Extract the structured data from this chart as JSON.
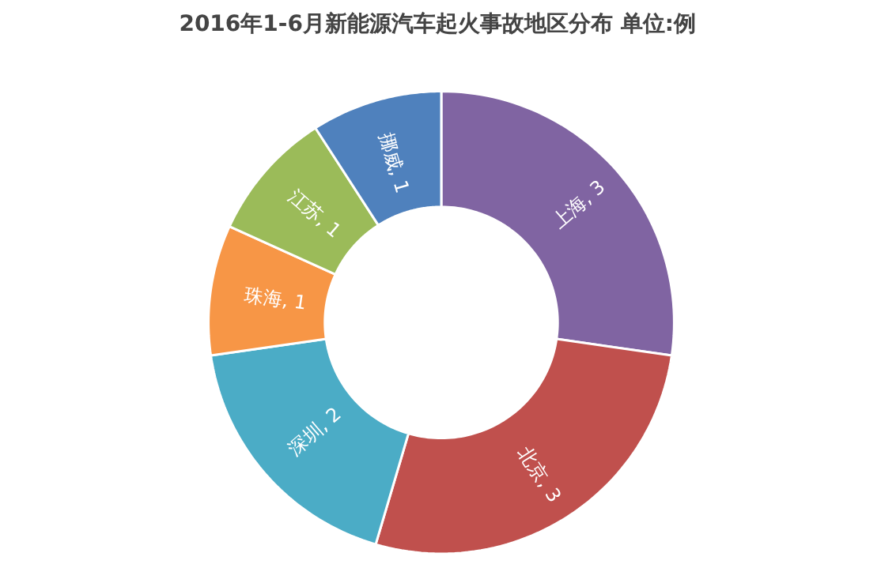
{
  "chart_data": {
    "type": "donut",
    "title": "2016年1-6月新能源汽车起火事故地区分布  单位:例",
    "categories": [
      "上海",
      "北京",
      "深圳",
      "珠海",
      "江苏",
      "挪威"
    ],
    "values": [
      3,
      3,
      2,
      1,
      1,
      1
    ],
    "value_labels": [
      ", 3",
      ", 3",
      ", 2",
      ", 1",
      ", 1",
      ", 1"
    ],
    "colors": [
      "#8064a2",
      "#c0504d",
      "#4bacc6",
      "#f79646",
      "#9bbb59",
      "#4f81bd"
    ]
  }
}
